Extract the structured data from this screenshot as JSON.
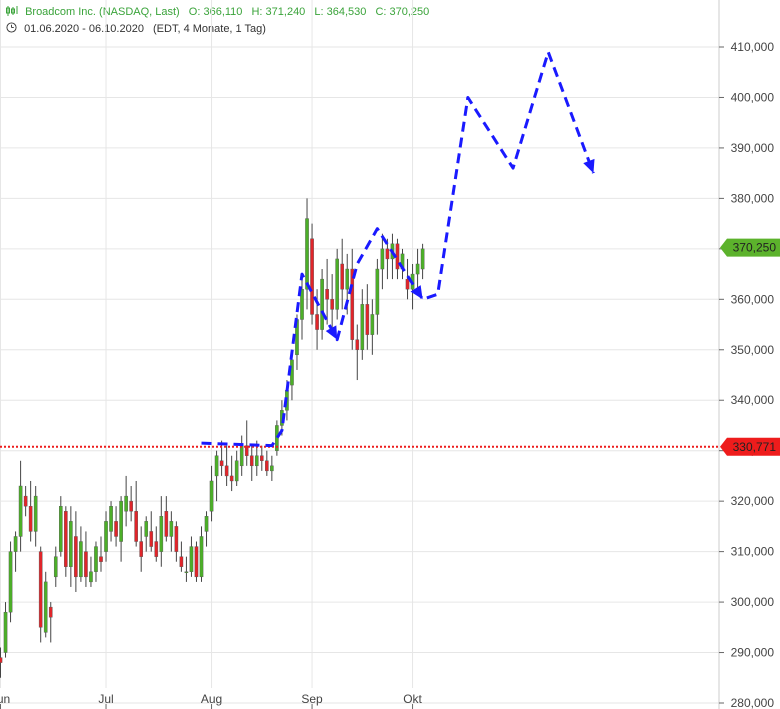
{
  "header": {
    "instrument": "Broadcom Inc. (NASDAQ, Last)",
    "ohlc": {
      "open": "O: 366,110",
      "high": "H: 371,240",
      "low": "L: 364,530",
      "close": "C: 370,250"
    },
    "date_range": "01.06.2020 - 06.10.2020",
    "period_info": "(EDT, 4 Monate, 1 Tag)",
    "colors": {
      "title": "#3aa33a",
      "text": "#333333"
    }
  },
  "chart_data": {
    "type": "candlestick",
    "ylim": [
      280,
      420
    ],
    "grid": true,
    "y_ticks": [
      {
        "v": 280,
        "label": "280,000"
      },
      {
        "v": 290,
        "label": "290,000"
      },
      {
        "v": 300,
        "label": "300,000"
      },
      {
        "v": 310,
        "label": "310,000"
      },
      {
        "v": 320,
        "label": "320,000"
      },
      {
        "v": 330,
        "label": "330,000"
      },
      {
        "v": 340,
        "label": "340,000"
      },
      {
        "v": 350,
        "label": "350,000"
      },
      {
        "v": 360,
        "label": "360,000"
      },
      {
        "v": 370,
        "label": "370,000"
      },
      {
        "v": 380,
        "label": "380,000"
      },
      {
        "v": 390,
        "label": "390,000"
      },
      {
        "v": 400,
        "label": "400,000"
      },
      {
        "v": 410,
        "label": "410,000"
      }
    ],
    "x_ticks": [
      {
        "i": 0,
        "label": "Jun"
      },
      {
        "i": 21,
        "label": "Jul"
      },
      {
        "i": 42,
        "label": "Aug"
      },
      {
        "i": 62,
        "label": "Sep"
      },
      {
        "i": 82,
        "label": "Okt"
      }
    ],
    "last_price": {
      "value": 370.25,
      "label": "370,250",
      "color": "#5cb22c"
    },
    "support_line": {
      "value": 330.771,
      "label": "330,771",
      "color": "#ee1c1c"
    },
    "colors": {
      "up": "#4caf28",
      "down": "#e0252a",
      "wick": "#444444",
      "projection": "#1a1aff",
      "grid": "#e6e6e6"
    },
    "candles": [
      [
        289,
        291,
        285,
        288
      ],
      [
        290,
        300,
        289,
        298
      ],
      [
        298,
        312,
        296,
        310
      ],
      [
        310,
        314,
        306,
        313
      ],
      [
        313,
        328,
        310,
        323
      ],
      [
        321,
        323,
        317,
        319
      ],
      [
        319,
        324,
        312,
        314
      ],
      [
        314,
        323,
        311,
        321
      ],
      [
        310,
        311,
        292,
        295
      ],
      [
        294,
        306,
        293,
        304
      ],
      [
        299,
        300,
        292,
        297
      ],
      [
        305,
        311,
        303,
        309
      ],
      [
        310,
        321,
        309,
        319
      ],
      [
        318,
        319,
        305,
        307
      ],
      [
        307,
        319,
        303,
        316
      ],
      [
        313,
        318,
        302,
        305
      ],
      [
        305,
        315,
        304,
        312
      ],
      [
        310,
        314,
        303,
        305
      ],
      [
        304,
        309,
        303,
        306
      ],
      [
        306,
        312,
        304,
        311
      ],
      [
        309,
        313,
        306,
        308
      ],
      [
        310,
        318,
        308,
        316
      ],
      [
        314,
        320,
        312,
        319
      ],
      [
        316,
        319,
        311,
        313
      ],
      [
        312,
        321,
        308,
        320
      ],
      [
        318,
        325,
        315,
        321
      ],
      [
        320,
        323,
        316,
        318
      ],
      [
        318,
        324,
        311,
        312
      ],
      [
        312,
        315,
        306,
        309
      ],
      [
        313,
        317,
        310,
        316
      ],
      [
        314,
        318,
        310,
        311
      ],
      [
        312,
        315,
        308,
        309
      ],
      [
        310,
        321,
        307,
        317
      ],
      [
        318,
        321,
        312,
        313
      ],
      [
        313,
        318,
        310,
        316
      ],
      [
        315,
        316,
        308,
        310
      ],
      [
        309,
        312,
        306,
        307
      ],
      [
        306,
        309,
        304,
        306
      ],
      [
        306,
        313,
        305,
        311
      ],
      [
        311,
        312,
        304,
        305
      ],
      [
        305,
        315,
        304,
        313
      ],
      [
        314,
        318,
        311,
        317
      ],
      [
        318,
        327,
        316,
        324
      ],
      [
        325,
        330,
        320,
        329
      ],
      [
        328,
        332,
        325,
        327
      ],
      [
        327,
        331,
        323,
        325
      ],
      [
        325,
        329,
        322,
        324
      ],
      [
        324,
        330,
        323,
        328
      ],
      [
        327,
        333,
        325,
        331
      ],
      [
        331,
        336,
        327,
        329
      ],
      [
        329,
        331,
        324,
        327
      ],
      [
        327,
        332,
        325,
        329
      ],
      [
        329,
        331,
        326,
        328
      ],
      [
        328,
        330,
        325,
        326
      ],
      [
        326,
        329,
        324,
        327
      ],
      [
        330,
        336,
        329,
        335
      ],
      [
        335,
        340,
        333,
        338
      ],
      [
        338,
        344,
        336,
        342
      ],
      [
        343,
        350,
        340,
        348
      ],
      [
        349,
        357,
        346,
        356
      ],
      [
        356,
        364,
        352,
        362
      ],
      [
        362,
        380,
        358,
        376
      ],
      [
        372,
        375,
        355,
        357
      ],
      [
        357,
        362,
        350,
        354
      ],
      [
        354,
        366,
        352,
        364
      ],
      [
        362,
        368,
        355,
        360
      ],
      [
        360,
        365,
        354,
        358
      ],
      [
        358,
        370,
        356,
        368
      ],
      [
        367,
        372,
        358,
        362
      ],
      [
        362,
        369,
        357,
        366
      ],
      [
        366,
        370,
        350,
        352
      ],
      [
        352,
        355,
        344,
        350
      ],
      [
        350,
        362,
        348,
        359
      ],
      [
        359,
        363,
        350,
        353
      ],
      [
        353,
        360,
        349,
        357
      ],
      [
        357,
        368,
        353,
        366
      ],
      [
        366,
        373,
        362,
        370
      ],
      [
        370,
        372,
        364,
        368
      ],
      [
        368,
        373,
        364,
        371
      ],
      [
        371,
        372,
        364,
        366
      ],
      [
        366,
        370,
        364,
        369
      ],
      [
        364,
        368,
        360,
        362
      ],
      [
        362,
        367,
        358,
        365
      ],
      [
        365,
        370,
        362,
        367
      ],
      [
        366,
        371,
        364,
        370
      ]
    ],
    "projection": [
      {
        "i": 40,
        "v": 331.5
      },
      {
        "i": 54,
        "v": 331
      },
      {
        "i": 56,
        "v": 334
      },
      {
        "i": 60,
        "v": 365
      },
      {
        "i": 67,
        "v": 352
      },
      {
        "i": 71,
        "v": 367
      },
      {
        "i": 75,
        "v": 374
      },
      {
        "i": 84,
        "v": 360
      },
      {
        "i": 87,
        "v": 361
      },
      {
        "i": 93,
        "v": 400
      },
      {
        "i": 102,
        "v": 386
      },
      {
        "i": 109,
        "v": 409
      },
      {
        "i": 118,
        "v": 385
      }
    ]
  }
}
